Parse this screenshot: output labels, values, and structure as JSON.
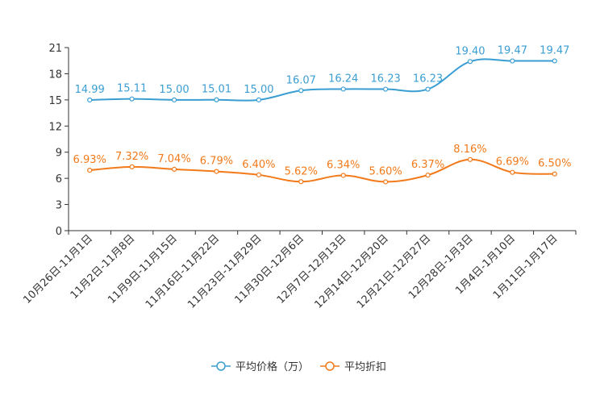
{
  "chart_data": {
    "type": "line",
    "title": "",
    "xlabel": "",
    "ylabel": "",
    "ylim": [
      0,
      21
    ],
    "yticks": [
      0,
      3,
      6,
      9,
      12,
      15,
      18,
      21
    ],
    "grid": false,
    "legend_position": "bottom-center",
    "categories": [
      "10月26日-11月1日",
      "11月2日-11月8日",
      "11月9日-11月15日",
      "11月16日-11月22日",
      "11月23日-11月29日",
      "11月30日-12月6日",
      "12月7日-12月13日",
      "12月14日-12月20日",
      "12月21日-12月27日",
      "12月28日-1月3日",
      "1月4日-1月10日",
      "1月11日-1月17日"
    ],
    "series": [
      {
        "name": "平均价格（万）",
        "color": "#3a9ed3",
        "values": [
          14.99,
          15.11,
          15.0,
          15.01,
          15.0,
          16.07,
          16.24,
          16.23,
          16.23,
          19.4,
          19.47,
          19.47
        ],
        "labels": [
          "14.99",
          "15.11",
          "15.00",
          "15.01",
          "15.00",
          "16.07",
          "16.24",
          "16.23",
          "16.23",
          "19.40",
          "19.47",
          "19.47"
        ]
      },
      {
        "name": "平均折扣",
        "color": "#f27a1a",
        "values": [
          6.93,
          7.32,
          7.04,
          6.79,
          6.4,
          5.62,
          6.34,
          5.6,
          6.37,
          8.16,
          6.69,
          6.5
        ],
        "labels": [
          "6.93%",
          "7.32%",
          "7.04%",
          "6.79%",
          "6.40%",
          "5.62%",
          "6.34%",
          "5.60%",
          "6.37%",
          "8.16%",
          "6.69%",
          "6.50%"
        ]
      }
    ]
  }
}
